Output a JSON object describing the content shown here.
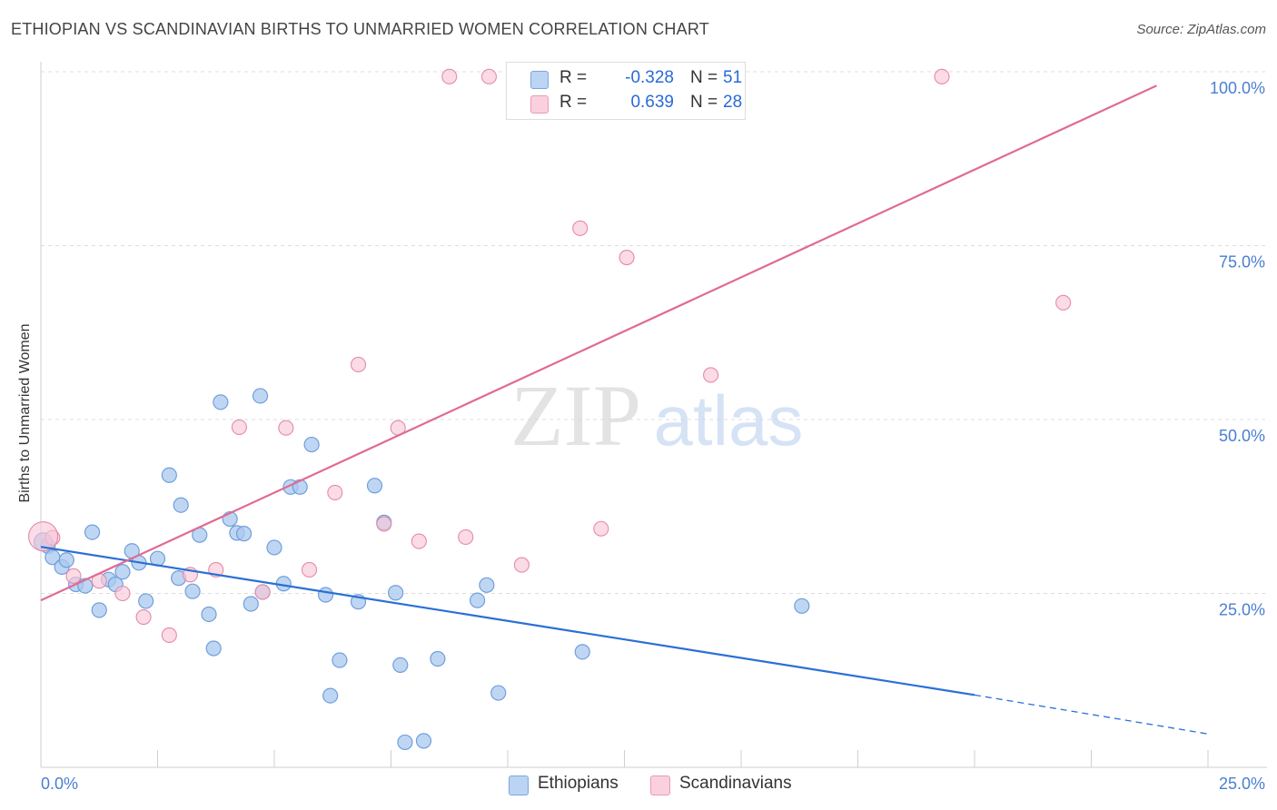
{
  "header": {
    "title": "ETHIOPIAN VS SCANDINAVIAN BIRTHS TO UNMARRIED WOMEN CORRELATION CHART",
    "source": "Source: ZipAtlas.com"
  },
  "watermark": {
    "zip": "ZIP",
    "atlas": "atlas"
  },
  "legend": {
    "r_label": "R =",
    "n_label": "N =",
    "rows": [
      {
        "name": "Ethiopians",
        "r": "-0.328",
        "n": "51",
        "color": "#a9c8ef"
      },
      {
        "name": "Scandinavians",
        "r": "0.639",
        "n": "28",
        "color": "#f7bcd0"
      }
    ]
  },
  "colors": {
    "ethiopians_fill": "#a9c8ef",
    "ethiopians_stroke": "#6f9fdc",
    "ethiopians_line": "#2a6fd6",
    "scandinavians_fill": "#f9c7d7",
    "scandinavians_stroke": "#e58aa8",
    "scandinavians_line": "#e06b93",
    "tick_text": "#4a7fd1"
  },
  "chart_data": {
    "type": "scatter",
    "title": "ETHIOPIAN VS SCANDINAVIAN BIRTHS TO UNMARRIED WOMEN CORRELATION CHART",
    "xlabel": "",
    "ylabel": "Births to Unmarried Women",
    "xlim": [
      0,
      25
    ],
    "ylim": [
      0,
      100
    ],
    "x_tick_labels": [
      "0.0%",
      "25.0%"
    ],
    "y_ticks": [
      25,
      50,
      75,
      100
    ],
    "y_tick_labels": [
      "25.0%",
      "50.0%",
      "75.0%",
      "100.0%"
    ],
    "grid": true,
    "legend_position": "top-center",
    "series": [
      {
        "name": "Ethiopians",
        "r": -0.328,
        "n": 51,
        "trend": {
          "x0": 0,
          "y0": 31.7,
          "x1": 20,
          "y1": 10.4,
          "dashed_to_x": 25,
          "dashed_to_y": 4.8
        },
        "points": [
          [
            0.15,
            31.8
          ],
          [
            0.25,
            30.2
          ],
          [
            0.45,
            28.8
          ],
          [
            0.55,
            29.8
          ],
          [
            0.75,
            26.3
          ],
          [
            1.1,
            33.8
          ],
          [
            0.95,
            26.1
          ],
          [
            1.25,
            22.6
          ],
          [
            1.45,
            27.0
          ],
          [
            1.6,
            26.3
          ],
          [
            1.75,
            28.1
          ],
          [
            1.95,
            31.1
          ],
          [
            2.1,
            29.4
          ],
          [
            2.25,
            23.9
          ],
          [
            2.5,
            30.0
          ],
          [
            2.75,
            42.0
          ],
          [
            3.0,
            37.7
          ],
          [
            2.95,
            27.2
          ],
          [
            3.25,
            25.3
          ],
          [
            3.4,
            33.4
          ],
          [
            3.6,
            22.0
          ],
          [
            3.7,
            17.1
          ],
          [
            3.85,
            52.5
          ],
          [
            4.05,
            35.7
          ],
          [
            4.2,
            33.7
          ],
          [
            4.35,
            33.6
          ],
          [
            4.5,
            23.5
          ],
          [
            4.7,
            53.4
          ],
          [
            4.75,
            25.2
          ],
          [
            5.0,
            31.6
          ],
          [
            5.2,
            26.4
          ],
          [
            5.35,
            40.3
          ],
          [
            5.55,
            40.3
          ],
          [
            5.8,
            46.4
          ],
          [
            6.1,
            24.8
          ],
          [
            6.4,
            15.4
          ],
          [
            6.2,
            10.3
          ],
          [
            6.8,
            23.8
          ],
          [
            7.15,
            40.5
          ],
          [
            7.35,
            35.2
          ],
          [
            7.6,
            25.1
          ],
          [
            7.7,
            14.7
          ],
          [
            7.8,
            3.6
          ],
          [
            8.2,
            3.8
          ],
          [
            8.5,
            15.6
          ],
          [
            9.35,
            24.0
          ],
          [
            9.55,
            26.2
          ],
          [
            9.8,
            10.7
          ],
          [
            11.6,
            16.6
          ],
          [
            16.3,
            23.2
          ],
          [
            0.05,
            32.4
          ]
        ]
      },
      {
        "name": "Scandinavians",
        "r": 0.639,
        "n": 28,
        "trend": {
          "x0": 0,
          "y0": 24.0,
          "x1": 23.9,
          "y1": 98.0
        },
        "points": [
          [
            0.25,
            33.0
          ],
          [
            0.7,
            27.5
          ],
          [
            1.25,
            26.8
          ],
          [
            1.75,
            25.0
          ],
          [
            2.2,
            21.6
          ],
          [
            2.75,
            19.0
          ],
          [
            3.2,
            27.7
          ],
          [
            3.75,
            28.4
          ],
          [
            4.25,
            48.9
          ],
          [
            4.75,
            25.2
          ],
          [
            5.25,
            48.8
          ],
          [
            5.75,
            28.4
          ],
          [
            6.3,
            39.5
          ],
          [
            6.8,
            57.9
          ],
          [
            7.35,
            35.0
          ],
          [
            7.65,
            48.8
          ],
          [
            8.1,
            32.5
          ],
          [
            8.75,
            99.3
          ],
          [
            9.1,
            33.1
          ],
          [
            9.6,
            99.3
          ],
          [
            10.3,
            29.1
          ],
          [
            11.55,
            77.5
          ],
          [
            12.0,
            34.3
          ],
          [
            12.55,
            73.3
          ],
          [
            14.35,
            56.4
          ],
          [
            19.3,
            99.3
          ],
          [
            21.9,
            66.8
          ],
          [
            0.05,
            33.2
          ]
        ]
      }
    ]
  }
}
